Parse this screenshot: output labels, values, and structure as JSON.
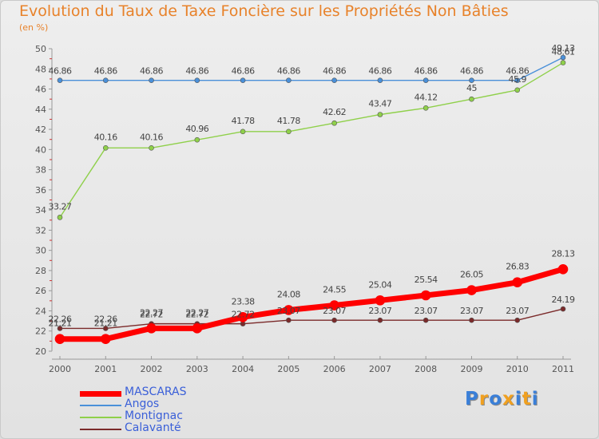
{
  "title": "Evolution du Taux de Taxe Foncière sur les Propriétés Non Bâties",
  "subtitle": "(en %)",
  "chart_data": {
    "type": "line",
    "title": "Evolution du Taux de Taxe Foncière sur les Propriétés Non Bâties",
    "ylabel": "(en %)",
    "xlabel": "",
    "categories": [
      "2000",
      "2001",
      "2002",
      "2003",
      "2004",
      "2005",
      "2006",
      "2007",
      "2008",
      "2009",
      "2010",
      "2011"
    ],
    "ylim": [
      20,
      50
    ],
    "yticks": [
      20,
      22,
      24,
      26,
      28,
      30,
      32,
      34,
      36,
      38,
      40,
      42,
      44,
      46,
      48,
      50
    ],
    "grid": false,
    "legend_position": "bottom-left",
    "series": [
      {
        "name": "MASCARAS",
        "color": "#ff0000",
        "values": [
          21.21,
          21.21,
          22.27,
          22.27,
          23.38,
          24.08,
          24.55,
          25.04,
          25.54,
          26.05,
          26.83,
          28.13
        ],
        "labels": [
          "21.21",
          "21.21",
          "22.27",
          "22.27",
          "23.38",
          "24.08",
          "24.55",
          "25.04",
          "25.54",
          "26.05",
          "26.83",
          "28.13"
        ]
      },
      {
        "name": "Angos",
        "color": "#4a90d9",
        "values": [
          46.86,
          46.86,
          46.86,
          46.86,
          46.86,
          46.86,
          46.86,
          46.86,
          46.86,
          46.86,
          46.86,
          49.13
        ],
        "labels": [
          "46.86",
          "46.86",
          "46.86",
          "46.86",
          "46.86",
          "46.86",
          "46.86",
          "46.86",
          "46.86",
          "46.86",
          "46.86",
          "49.13"
        ]
      },
      {
        "name": "Montignac",
        "color": "#8fd04a",
        "values": [
          33.27,
          40.16,
          40.16,
          40.96,
          41.78,
          41.78,
          42.62,
          43.47,
          44.12,
          45,
          45.9,
          48.61
        ],
        "labels": [
          "33.27",
          "40.16",
          "40.16",
          "40.96",
          "41.78",
          "41.78",
          "42.62",
          "43.47",
          "44.12",
          "45",
          "45.9",
          "48.61"
        ]
      },
      {
        "name": "Calavanté",
        "color": "#7b2a2a",
        "values": [
          22.26,
          22.26,
          22.72,
          22.72,
          22.72,
          23.07,
          23.07,
          23.07,
          23.07,
          23.07,
          23.07,
          24.19
        ],
        "labels": [
          "22.26",
          "22.26",
          "22.72",
          "22.72",
          "22.72",
          "23.07",
          "23.07",
          "23.07",
          "23.07",
          "23.07",
          "23.07",
          "24.19"
        ]
      }
    ]
  },
  "legend": [
    {
      "label": "MASCARAS",
      "color": "#ff0000"
    },
    {
      "label": "Angos",
      "color": "#4a90d9"
    },
    {
      "label": "Montignac",
      "color": "#8fd04a"
    },
    {
      "label": "Calavanté",
      "color": "#7b2a2a"
    }
  ],
  "logo": {
    "text": "Proxiti",
    "letters": [
      "P",
      "r",
      "o",
      "x",
      "i",
      "t",
      "i"
    ],
    "colors": [
      "#3a7fd8",
      "#f0a020",
      "#3a7fd8",
      "#f0a020",
      "#3a7fd8",
      "#f0a020",
      "#3a7fd8"
    ]
  }
}
